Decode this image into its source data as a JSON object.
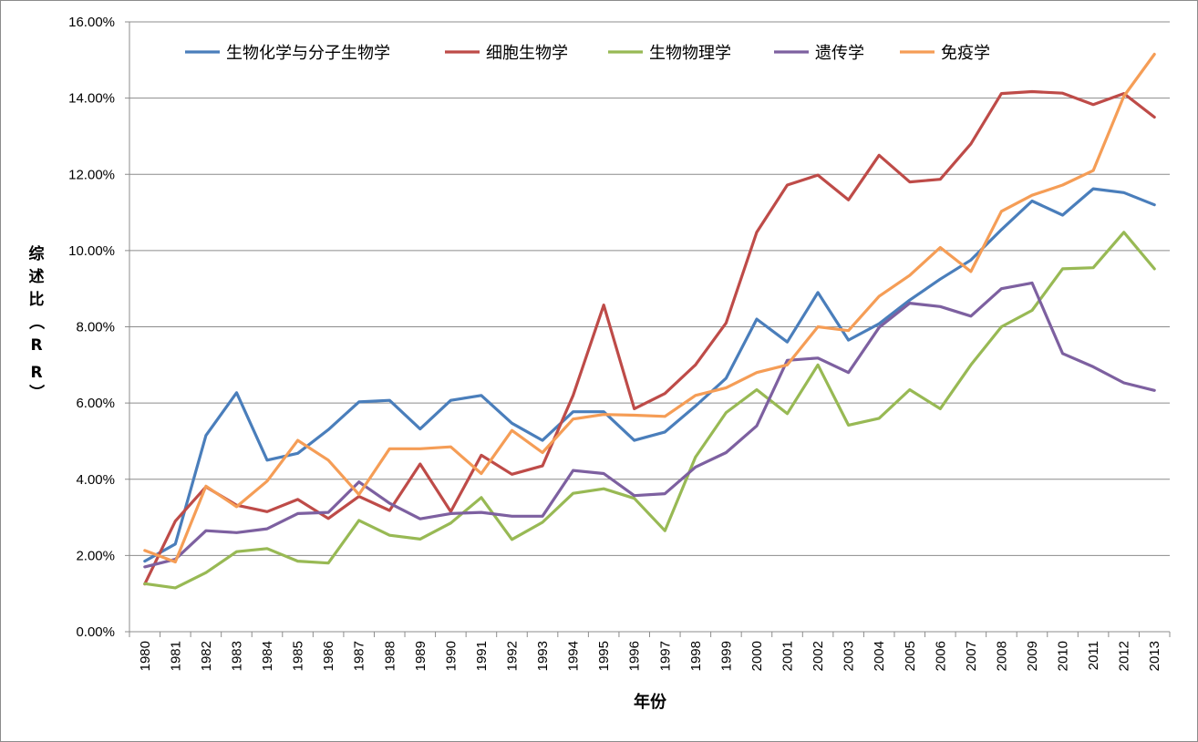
{
  "chart_data": {
    "type": "line",
    "title": "",
    "xlabel": "年份",
    "ylabel": "综述比（RR）",
    "ylim": [
      0,
      0.16
    ],
    "yticks": [
      "0.00%",
      "2.00%",
      "4.00%",
      "6.00%",
      "8.00%",
      "10.00%",
      "12.00%",
      "14.00%",
      "16.00%"
    ],
    "ytick_values": [
      0,
      0.02,
      0.04,
      0.06,
      0.08,
      0.1,
      0.12,
      0.14,
      0.16
    ],
    "grid": "horizontal",
    "legend_position": "top",
    "categories": [
      "1980",
      "1981",
      "1982",
      "1983",
      "1984",
      "1985",
      "1986",
      "1987",
      "1988",
      "1989",
      "1990",
      "1991",
      "1992",
      "1993",
      "1994",
      "1995",
      "1996",
      "1997",
      "1998",
      "1999",
      "2000",
      "2001",
      "2002",
      "2003",
      "2004",
      "2005",
      "2006",
      "2007",
      "2008",
      "2009",
      "2010",
      "2011",
      "2012",
      "2013"
    ],
    "series": [
      {
        "name": "生物化学与分子生物学",
        "color": "#4a7ebb",
        "values": [
          0.0185,
          0.023,
          0.0515,
          0.0627,
          0.045,
          0.0468,
          0.053,
          0.0603,
          0.0607,
          0.0532,
          0.0607,
          0.062,
          0.0547,
          0.0502,
          0.0577,
          0.0577,
          0.0502,
          0.0524,
          0.0592,
          0.0665,
          0.082,
          0.076,
          0.089,
          0.0765,
          0.0808,
          0.087,
          0.0925,
          0.0975,
          0.1055,
          0.113,
          0.1093,
          0.1162,
          0.1152,
          0.112
        ]
      },
      {
        "name": "细胞生物学",
        "color": "#be4b48",
        "values": [
          0.0125,
          0.029,
          0.038,
          0.0332,
          0.0315,
          0.0347,
          0.0297,
          0.0355,
          0.0318,
          0.044,
          0.0315,
          0.0463,
          0.0413,
          0.0435,
          0.062,
          0.0857,
          0.0585,
          0.0625,
          0.07,
          0.081,
          0.1048,
          0.1172,
          0.1198,
          0.1133,
          0.125,
          0.118,
          0.1187,
          0.128,
          0.1412,
          0.1417,
          0.1413,
          0.1383,
          0.1412,
          0.135
        ]
      },
      {
        "name": "生物物理学",
        "color": "#98b954",
        "values": [
          0.0126,
          0.0115,
          0.0155,
          0.021,
          0.0218,
          0.0185,
          0.018,
          0.0292,
          0.0253,
          0.0243,
          0.0285,
          0.0352,
          0.0242,
          0.0287,
          0.0363,
          0.0375,
          0.035,
          0.0265,
          0.0458,
          0.0575,
          0.0635,
          0.0572,
          0.07,
          0.0542,
          0.056,
          0.0635,
          0.0585,
          0.07,
          0.08,
          0.0843,
          0.0952,
          0.0955,
          0.1048,
          0.0952
        ]
      },
      {
        "name": "遗传学",
        "color": "#7d60a0",
        "values": [
          0.017,
          0.019,
          0.0265,
          0.026,
          0.027,
          0.031,
          0.0313,
          0.0393,
          0.0337,
          0.0296,
          0.031,
          0.0313,
          0.0303,
          0.0303,
          0.0423,
          0.0415,
          0.0357,
          0.0362,
          0.0432,
          0.047,
          0.054,
          0.0712,
          0.0718,
          0.068,
          0.0798,
          0.0862,
          0.0853,
          0.0828,
          0.09,
          0.0915,
          0.073,
          0.0695,
          0.0653,
          0.0633
        ]
      },
      {
        "name": "免疫学",
        "color": "#f59d56",
        "values": [
          0.0213,
          0.0183,
          0.0382,
          0.0328,
          0.0395,
          0.0502,
          0.045,
          0.036,
          0.048,
          0.048,
          0.0485,
          0.0415,
          0.0528,
          0.047,
          0.0558,
          0.057,
          0.0568,
          0.0565,
          0.062,
          0.064,
          0.068,
          0.07,
          0.08,
          0.079,
          0.088,
          0.0935,
          0.1008,
          0.0945,
          0.1103,
          0.1145,
          0.1172,
          0.121,
          0.1405,
          0.1515
        ]
      }
    ]
  }
}
